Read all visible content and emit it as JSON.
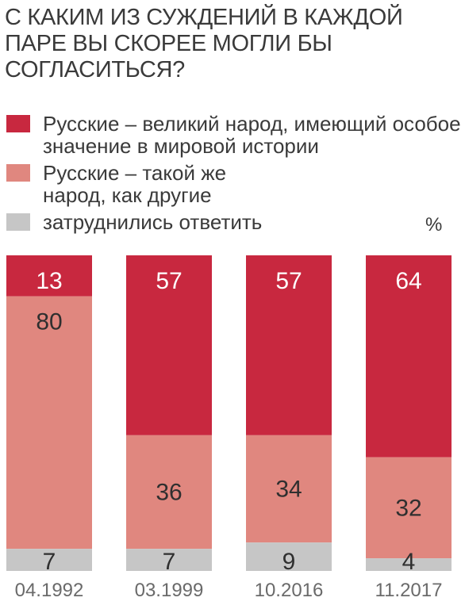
{
  "chart_data": {
    "type": "bar",
    "stacked": true,
    "title": "С КАКИМ ИЗ СУЖДЕНИЙ В КАЖДОЙ ПАРЕ ВЫ СКОРЕЕ МОГЛИ БЫ СОГЛАСИТЬСЯ?",
    "unit": "%",
    "categories": [
      "04.1992",
      "03.1999",
      "10.2016",
      "11.2017"
    ],
    "series": [
      {
        "name": "Русские – великий народ, имеющий особое значение в мировой истории",
        "color": "#c8283f",
        "label_color": "#ffffff",
        "values": [
          13,
          57,
          57,
          64
        ]
      },
      {
        "name": "Русские – такой же народ, как другие",
        "color": "#e0877f",
        "label_color": "#2f2f2f",
        "values": [
          80,
          36,
          34,
          32
        ]
      },
      {
        "name": "затруднились ответить",
        "color": "#c6c6c6",
        "label_color": "#2f2f2f",
        "values": [
          7,
          7,
          9,
          4
        ]
      }
    ],
    "ylim": [
      0,
      100
    ],
    "legend_position": "top"
  }
}
